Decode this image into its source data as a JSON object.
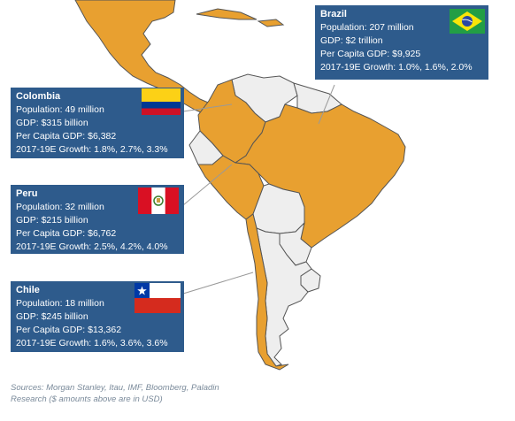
{
  "countries": [
    {
      "key": "brazil",
      "name": "Brazil",
      "population": "Population:   207 million",
      "gdp": "GDP:  $2 trillion",
      "per_capita": "Per Capita GDP:  $9,925",
      "growth": "2017-19E Growth:  1.0%, 1.6%, 2.0%"
    },
    {
      "key": "colombia",
      "name": "Colombia",
      "population": "Population:   49 million",
      "gdp": "GDP:  $315 billion",
      "per_capita": "Per Capita GDP:  $6,382",
      "growth": "2017-19E Growth:      1.8%, 2.7%, 3.3%"
    },
    {
      "key": "peru",
      "name": "Peru",
      "population": "Population:   32 million",
      "gdp": "GDP:  $215 billion",
      "per_capita": "Per Capita GDP:  $6,762",
      "growth": "2017-19E Growth:  2.5%, 4.2%, 4.0%"
    },
    {
      "key": "chile",
      "name": "Chile",
      "population": "Population:   18 million",
      "gdp": "GDP:  $245 billion",
      "per_capita": "Per Capita  GDP:  $13,362",
      "growth": "2017-19E Growth:  1.6%, 3.6%, 3.6%"
    }
  ],
  "source_line1": "Sources: Morgan Stanley, Itau, IMF, Bloomberg, Paladin",
  "source_line2": "Research ($ amounts above are in USD)",
  "colors": {
    "highlight": "#e8a030",
    "land": "#eeeeee",
    "border": "#555555",
    "box": "#2e5b8c",
    "leader": "#999999"
  }
}
